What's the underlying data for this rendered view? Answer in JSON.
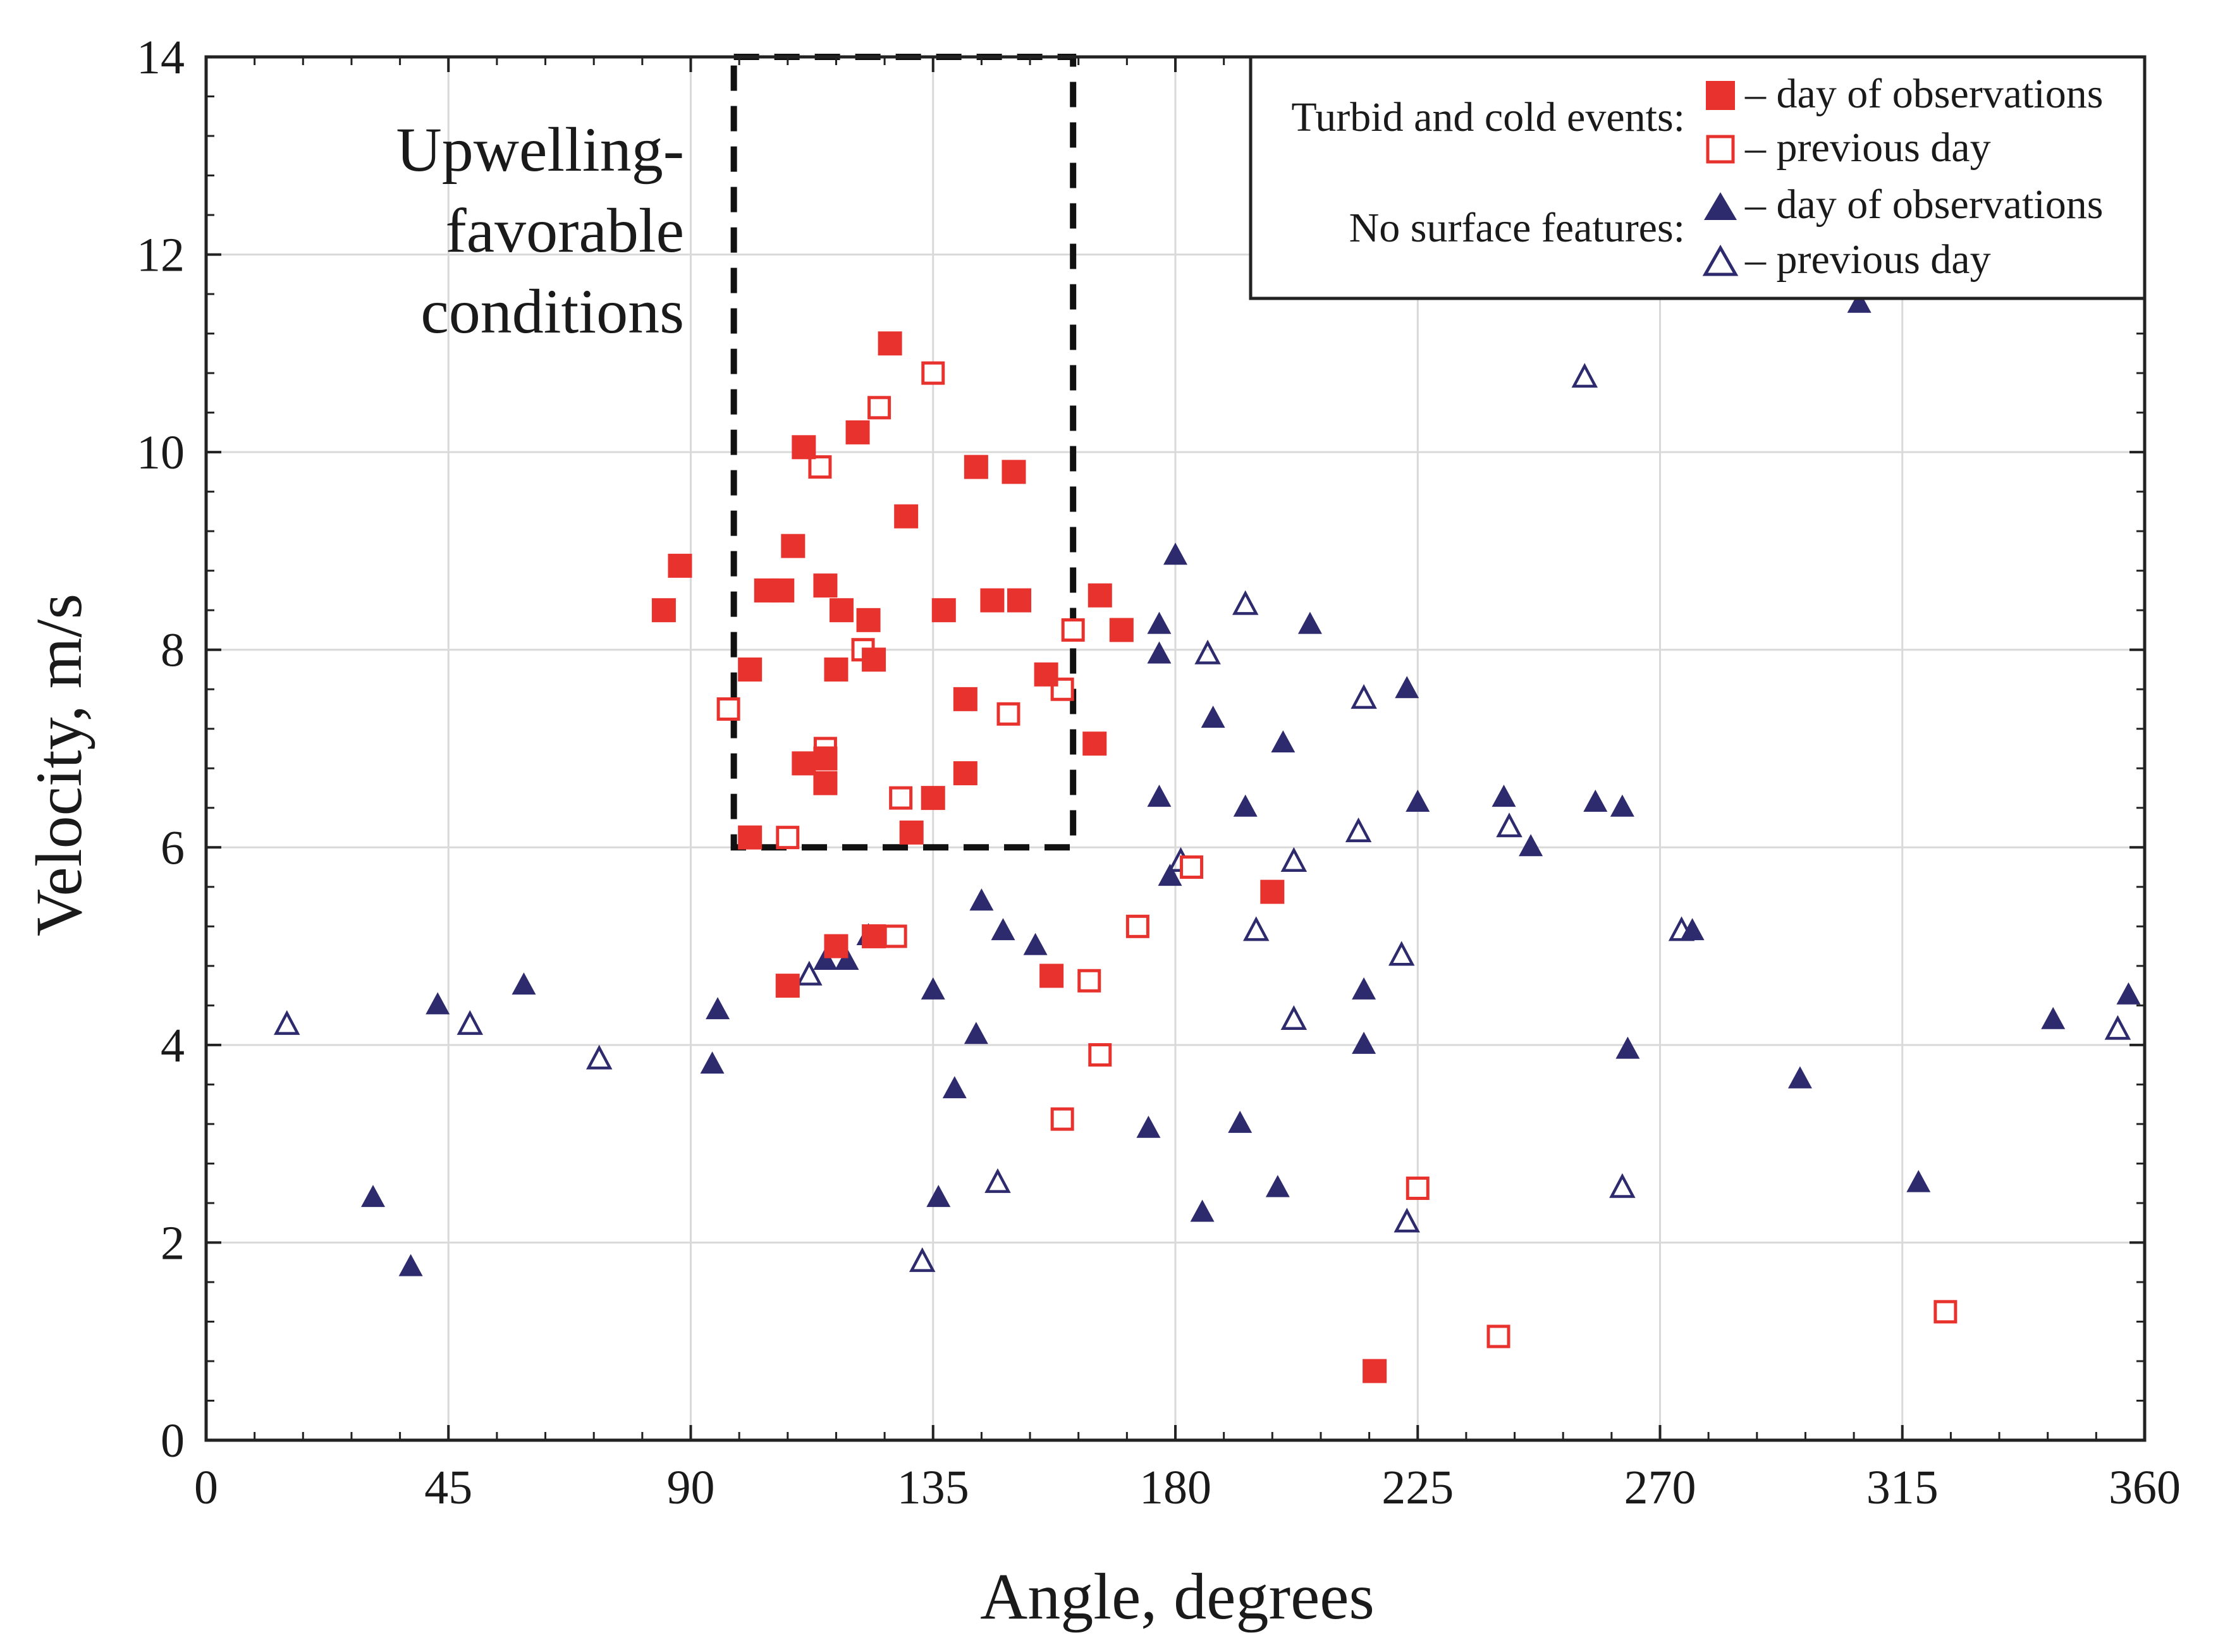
{
  "chart_data": {
    "type": "scatter",
    "xlabel": "Angle, degrees",
    "ylabel": "Velocity, m/s",
    "xlim": [
      0,
      360
    ],
    "ylim": [
      0,
      14
    ],
    "xticks": [
      0,
      45,
      90,
      135,
      180,
      225,
      270,
      315,
      360
    ],
    "yticks": [
      0,
      2,
      4,
      6,
      8,
      10,
      12,
      14
    ],
    "grid": true,
    "legend_position": "top-right",
    "annotation": {
      "lines": [
        "Upwelling-",
        "favorable",
        "conditions"
      ],
      "region": {
        "x": [
          98,
          161
        ],
        "y": [
          6,
          14
        ]
      }
    },
    "legend": {
      "group1_label": "Turbid and cold events:",
      "group2_label": "No surface features:",
      "entry_day": "– day of observations",
      "entry_prev": "– previous day"
    },
    "colors": {
      "red": "#e8322e",
      "navy": "#2e2a6e",
      "grid": "#d9d9d9",
      "axis": "#222222"
    },
    "series": [
      {
        "name": "Turbid and cold events – day of observations",
        "marker": "filled-square",
        "points": [
          [
            85,
            8.4
          ],
          [
            88,
            8.85
          ],
          [
            101,
            7.8
          ],
          [
            101,
            6.1
          ],
          [
            104,
            8.6
          ],
          [
            107,
            8.6
          ],
          [
            108,
            4.6
          ],
          [
            109,
            9.05
          ],
          [
            111,
            6.85
          ],
          [
            111,
            10.05
          ],
          [
            115,
            6.65
          ],
          [
            115,
            6.9
          ],
          [
            115,
            8.65
          ],
          [
            117,
            7.8
          ],
          [
            117,
            5.0
          ],
          [
            118,
            8.4
          ],
          [
            121,
            10.2
          ],
          [
            123,
            8.3
          ],
          [
            124,
            7.9
          ],
          [
            124,
            5.1
          ],
          [
            127,
            11.1
          ],
          [
            130,
            9.35
          ],
          [
            131,
            6.15
          ],
          [
            135,
            6.5
          ],
          [
            137,
            8.4
          ],
          [
            141,
            7.5
          ],
          [
            141,
            6.75
          ],
          [
            143,
            9.85
          ],
          [
            146,
            8.5
          ],
          [
            150,
            9.8
          ],
          [
            151,
            8.5
          ],
          [
            156,
            7.75
          ],
          [
            157,
            4.7
          ],
          [
            165,
            7.05
          ],
          [
            166,
            8.55
          ],
          [
            170,
            8.2
          ],
          [
            198,
            5.55
          ],
          [
            217,
            0.7
          ]
        ]
      },
      {
        "name": "Turbid and cold events – previous day",
        "marker": "open-square",
        "points": [
          [
            97,
            7.4
          ],
          [
            108,
            6.1
          ],
          [
            114,
            9.85
          ],
          [
            115,
            7.0
          ],
          [
            115,
            6.9
          ],
          [
            122,
            8.0
          ],
          [
            125,
            10.45
          ],
          [
            128,
            5.1
          ],
          [
            129,
            6.5
          ],
          [
            135,
            10.8
          ],
          [
            149,
            7.35
          ],
          [
            159,
            7.6
          ],
          [
            161,
            8.2
          ],
          [
            164,
            4.65
          ],
          [
            166,
            3.9
          ],
          [
            159,
            3.25
          ],
          [
            173,
            5.2
          ],
          [
            183,
            5.8
          ],
          [
            225,
            2.55
          ],
          [
            240,
            1.05
          ],
          [
            323,
            1.3
          ]
        ]
      },
      {
        "name": "No surface features – day of observations",
        "marker": "filled-triangle",
        "points": [
          [
            31,
            2.45
          ],
          [
            38,
            1.75
          ],
          [
            43,
            4.4
          ],
          [
            59,
            4.6
          ],
          [
            94,
            3.8
          ],
          [
            95,
            4.35
          ],
          [
            115,
            4.85
          ],
          [
            119,
            4.85
          ],
          [
            123,
            5.1
          ],
          [
            135,
            4.55
          ],
          [
            136,
            2.45
          ],
          [
            139,
            3.55
          ],
          [
            143,
            4.1
          ],
          [
            144,
            5.45
          ],
          [
            148,
            5.15
          ],
          [
            154,
            5.0
          ],
          [
            175,
            3.15
          ],
          [
            177,
            6.5
          ],
          [
            177,
            8.25
          ],
          [
            177,
            7.95
          ],
          [
            179,
            5.7
          ],
          [
            180,
            8.95
          ],
          [
            185,
            2.3
          ],
          [
            187,
            7.3
          ],
          [
            192,
            3.2
          ],
          [
            193,
            6.4
          ],
          [
            199,
            2.55
          ],
          [
            200,
            7.05
          ],
          [
            205,
            8.25
          ],
          [
            215,
            4.55
          ],
          [
            215,
            4.0
          ],
          [
            223,
            7.6
          ],
          [
            225,
            6.45
          ],
          [
            241,
            6.5
          ],
          [
            246,
            6.0
          ],
          [
            258,
            6.45
          ],
          [
            263,
            6.4
          ],
          [
            264,
            3.95
          ],
          [
            276,
            5.15
          ],
          [
            296,
            3.65
          ],
          [
            307,
            11.5
          ],
          [
            318,
            2.6
          ],
          [
            343,
            4.25
          ],
          [
            357,
            4.5
          ]
        ]
      },
      {
        "name": "No surface features – previous day",
        "marker": "open-triangle",
        "points": [
          [
            15,
            4.2
          ],
          [
            49,
            4.2
          ],
          [
            73,
            3.85
          ],
          [
            112,
            4.7
          ],
          [
            133,
            1.8
          ],
          [
            147,
            2.6
          ],
          [
            181,
            5.85
          ],
          [
            186,
            7.95
          ],
          [
            193,
            8.45
          ],
          [
            195,
            5.15
          ],
          [
            202,
            5.85
          ],
          [
            202,
            4.25
          ],
          [
            214,
            6.15
          ],
          [
            215,
            7.5
          ],
          [
            222,
            4.9
          ],
          [
            223,
            2.2
          ],
          [
            242,
            6.2
          ],
          [
            256,
            10.75
          ],
          [
            263,
            2.55
          ],
          [
            274,
            5.15
          ],
          [
            355,
            4.15
          ]
        ]
      }
    ]
  }
}
